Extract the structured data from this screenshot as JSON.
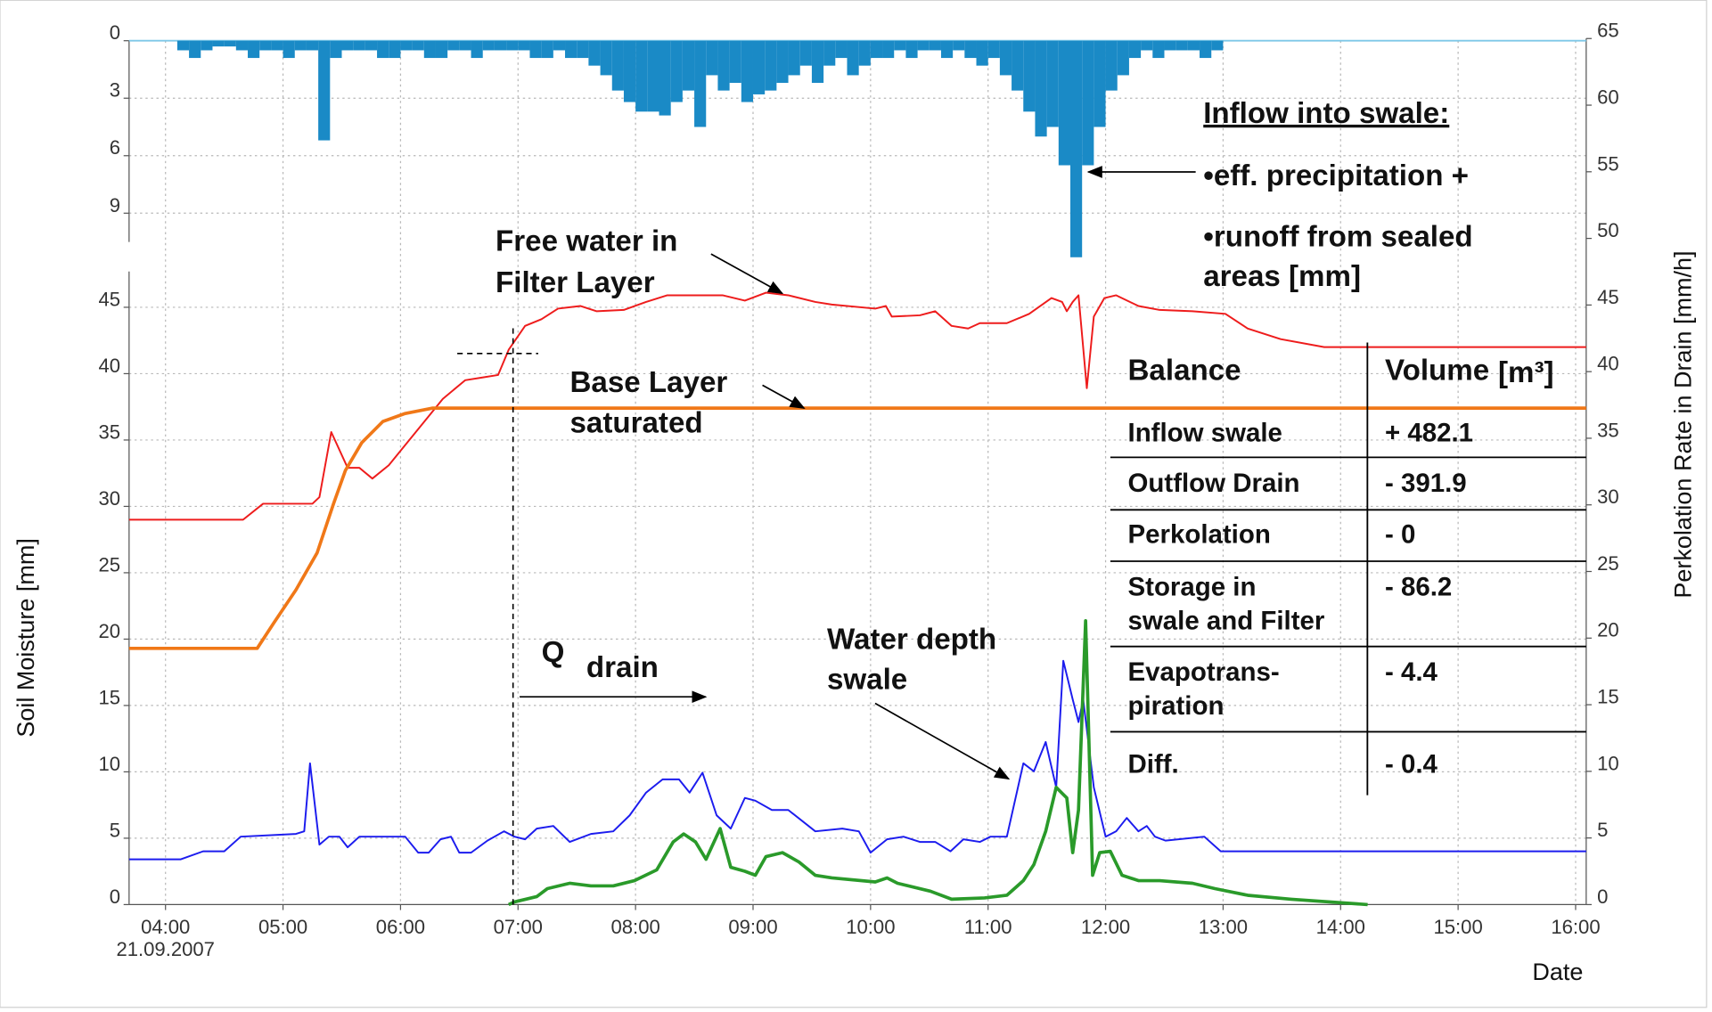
{
  "chart_data": [
    {
      "type": "bar",
      "color": "#1a8ac6",
      "inverted": true,
      "grid": true,
      "xlim": [
        3.69,
        16.09
      ],
      "ylim": [
        0,
        10.5
      ],
      "yticks": [
        0,
        3,
        6,
        9
      ],
      "x": [
        4.1,
        4.2,
        4.3,
        4.4,
        4.5,
        4.6,
        4.7,
        4.8,
        4.9,
        5.0,
        5.1,
        5.2,
        5.3,
        5.4,
        5.5,
        5.6,
        5.7,
        5.8,
        5.9,
        6.0,
        6.1,
        6.2,
        6.3,
        6.4,
        6.5,
        6.6,
        6.7,
        6.8,
        6.9,
        7.0,
        7.1,
        7.2,
        7.3,
        7.4,
        7.5,
        7.6,
        7.7,
        7.8,
        7.9,
        8.0,
        8.1,
        8.2,
        8.3,
        8.4,
        8.5,
        8.6,
        8.7,
        8.8,
        8.9,
        9.0,
        9.1,
        9.2,
        9.3,
        9.4,
        9.5,
        9.6,
        9.7,
        9.8,
        9.9,
        10.0,
        10.1,
        10.2,
        10.3,
        10.4,
        10.5,
        10.6,
        10.7,
        10.8,
        10.9,
        11.0,
        11.1,
        11.2,
        11.3,
        11.4,
        11.5,
        11.6,
        11.7,
        11.8,
        11.9,
        12.0,
        12.1,
        12.2,
        12.3,
        12.4,
        12.5,
        12.6,
        12.7,
        12.8,
        12.9
      ],
      "values": [
        0.5,
        0.9,
        0.5,
        0.3,
        0.3,
        0.5,
        0.9,
        0.5,
        0.5,
        0.9,
        0.5,
        0.5,
        5.2,
        0.9,
        0.5,
        0.5,
        0.5,
        0.9,
        0.9,
        0.5,
        0.5,
        0.9,
        0.9,
        0.5,
        0.5,
        0.9,
        0.5,
        0.5,
        0.5,
        0.5,
        0.9,
        0.9,
        0.5,
        0.9,
        0.9,
        1.3,
        1.8,
        2.6,
        3.2,
        3.7,
        3.7,
        3.9,
        3.2,
        2.6,
        4.5,
        1.8,
        2.6,
        2.2,
        3.2,
        2.8,
        2.6,
        2.2,
        1.8,
        1.3,
        2.2,
        1.3,
        0.9,
        1.8,
        1.3,
        0.9,
        0.9,
        0.5,
        0.9,
        0.5,
        0.5,
        0.9,
        0.5,
        0.9,
        1.3,
        0.9,
        1.8,
        2.6,
        3.7,
        5.0,
        4.5,
        6.5,
        11.3,
        6.5,
        4.5,
        2.6,
        1.8,
        0.9,
        0.5,
        0.9,
        0.5,
        0.5,
        0.5,
        0.9,
        0.5
      ]
    },
    {
      "type": "line",
      "grid": true,
      "xlim": [
        3.69,
        16.09
      ],
      "xticks": [
        {
          "value": 4,
          "label": "04:00"
        },
        {
          "value": 5,
          "label": "05:00"
        },
        {
          "value": 6,
          "label": "06:00"
        },
        {
          "value": 7,
          "label": "07:00"
        },
        {
          "value": 8,
          "label": "08:00"
        },
        {
          "value": 9,
          "label": "09:00"
        },
        {
          "value": 10,
          "label": "10:00"
        },
        {
          "value": 11,
          "label": "11:00"
        },
        {
          "value": 12,
          "label": "12:00"
        },
        {
          "value": 13,
          "label": "13:00"
        },
        {
          "value": 14,
          "label": "14:00"
        },
        {
          "value": 15,
          "label": "15:00"
        },
        {
          "value": 16,
          "label": "16:00"
        }
      ],
      "x_date": "21.09.2007",
      "xlabel": "Date",
      "ylabel": "Soil Moisture [mm]",
      "y2label": "Perkolation Rate in Drain [mm/h]",
      "ylim": [
        0,
        47.7
      ],
      "yticks": [
        0,
        5,
        10,
        15,
        20,
        25,
        30,
        35,
        40,
        45
      ],
      "y2lim": [
        0,
        65
      ],
      "y2ticks": [
        0,
        5,
        10,
        15,
        20,
        25,
        30,
        35,
        40,
        45,
        50,
        55,
        60,
        65
      ],
      "series": [
        {
          "color": "#ee1c1c",
          "x": [
            3.69,
            4.66,
            4.83,
            5.25,
            5.31,
            5.41,
            5.55,
            5.65,
            5.76,
            5.9,
            6.13,
            6.36,
            6.55,
            6.69,
            6.83,
            6.92,
            7.06,
            7.2,
            7.34,
            7.53,
            7.67,
            7.9,
            8.09,
            8.27,
            8.74,
            8.93,
            9.11,
            9.3,
            9.53,
            9.67,
            10.04,
            10.13,
            10.18,
            10.42,
            10.55,
            10.69,
            10.83,
            10.93,
            11.16,
            11.35,
            11.54,
            11.63,
            11.67,
            11.72,
            11.77,
            11.84,
            11.9,
            11.99,
            12.09,
            12.28,
            12.46,
            12.74,
            13.02,
            13.21,
            13.49,
            13.86,
            16.09
          ],
          "values": [
            29.0,
            29.0,
            30.2,
            30.2,
            30.7,
            35.6,
            32.9,
            32.9,
            32.1,
            33.1,
            35.6,
            38.1,
            39.5,
            39.7,
            39.9,
            41.8,
            43.6,
            44.1,
            44.9,
            45.1,
            44.7,
            44.8,
            45.4,
            45.9,
            45.9,
            45.5,
            46.1,
            45.9,
            45.4,
            45.2,
            44.9,
            45.1,
            44.3,
            44.4,
            44.7,
            43.6,
            43.4,
            43.8,
            43.8,
            44.5,
            45.7,
            45.4,
            44.7,
            45.4,
            45.9,
            38.9,
            44.3,
            45.7,
            45.9,
            45.1,
            44.8,
            44.7,
            44.5,
            43.4,
            42.6,
            42.0,
            42.0
          ]
        },
        {
          "color": "#f07818",
          "x": [
            3.69,
            4.78,
            4.92,
            5.11,
            5.29,
            5.43,
            5.53,
            5.67,
            5.85,
            6.04,
            6.27,
            16.09
          ],
          "values": [
            19.3,
            19.3,
            21.2,
            23.7,
            26.5,
            30.2,
            32.7,
            34.8,
            36.4,
            37.0,
            37.4,
            37.4
          ]
        },
        {
          "color": "#1c1cee",
          "axis": "y2",
          "x": [
            3.69,
            4.13,
            4.32,
            4.5,
            4.64,
            5.11,
            5.18,
            5.23,
            5.31,
            5.39,
            5.48,
            5.55,
            5.65,
            6.04,
            6.15,
            6.24,
            6.34,
            6.43,
            6.5,
            6.6,
            6.74,
            6.88,
            6.97,
            7.06,
            7.16,
            7.3,
            7.44,
            7.62,
            7.81,
            7.95,
            8.09,
            8.23,
            8.37,
            8.46,
            8.57,
            8.69,
            8.81,
            8.93,
            9.02,
            9.16,
            9.3,
            9.53,
            9.76,
            9.9,
            10.0,
            10.14,
            10.28,
            10.42,
            10.55,
            10.68,
            10.79,
            10.93,
            11.02,
            11.16,
            11.3,
            11.39,
            11.49,
            11.58,
            11.64,
            11.72,
            11.77,
            11.81,
            11.9,
            12.0,
            12.09,
            12.18,
            12.28,
            12.35,
            12.42,
            12.51,
            12.84,
            12.98,
            16.09
          ],
          "values": [
            3.4,
            3.4,
            4.0,
            4.0,
            5.1,
            5.3,
            5.5,
            10.6,
            4.5,
            5.1,
            5.1,
            4.3,
            5.1,
            5.1,
            3.9,
            3.9,
            4.9,
            5.1,
            3.9,
            3.9,
            4.8,
            5.5,
            5.1,
            4.9,
            5.7,
            5.9,
            4.7,
            5.3,
            5.5,
            6.7,
            8.4,
            9.4,
            9.4,
            8.4,
            9.9,
            6.7,
            5.7,
            8.0,
            7.8,
            7.1,
            7.1,
            5.5,
            5.7,
            5.5,
            3.9,
            4.9,
            5.1,
            4.7,
            4.7,
            4.0,
            4.9,
            4.7,
            5.1,
            5.1,
            10.6,
            10.0,
            12.2,
            8.8,
            18.3,
            15.4,
            13.7,
            15.4,
            8.8,
            5.1,
            5.5,
            6.5,
            5.5,
            5.9,
            5.1,
            4.8,
            5.1,
            4.0,
            4.0
          ]
        },
        {
          "color": "#2a9a2a",
          "axis": "y2",
          "x": [
            6.92,
            6.97,
            7.16,
            7.25,
            7.44,
            7.62,
            7.81,
            7.99,
            8.18,
            8.32,
            8.41,
            8.51,
            8.6,
            8.72,
            8.81,
            8.93,
            9.02,
            9.11,
            9.25,
            9.39,
            9.53,
            9.67,
            10.04,
            10.14,
            10.23,
            10.51,
            10.69,
            10.97,
            11.16,
            11.3,
            11.39,
            11.49,
            11.58,
            11.67,
            11.72,
            11.77,
            11.83,
            11.89,
            11.95,
            12.04,
            12.14,
            12.28,
            12.46,
            12.74,
            12.93,
            13.21,
            13.58,
            14.23
          ],
          "values": [
            0,
            0.2,
            0.6,
            1.2,
            1.6,
            1.4,
            1.4,
            1.8,
            2.6,
            4.7,
            5.3,
            4.7,
            3.4,
            5.7,
            2.8,
            2.5,
            2.2,
            3.6,
            3.9,
            3.2,
            2.2,
            2.0,
            1.7,
            2.0,
            1.6,
            1.0,
            0.4,
            0.5,
            0.7,
            1.8,
            3.0,
            5.5,
            8.8,
            8.0,
            3.9,
            7.1,
            21.3,
            2.2,
            3.9,
            4.0,
            2.2,
            1.8,
            1.8,
            1.6,
            1.2,
            0.7,
            0.4,
            0
          ]
        }
      ],
      "annotations": {
        "inflow_title": "Inflow into swale:",
        "inflow_lines": [
          "•eff. precipitation +",
          "•runoff from sealed",
          "areas [mm]"
        ],
        "free_water": [
          "Free water in",
          "Filter Layer"
        ],
        "base_layer": [
          "Base Layer",
          "saturated"
        ],
        "q": "Q",
        "q_sub": "drain",
        "water_depth": [
          "Water depth",
          "swale"
        ]
      },
      "table": {
        "header": [
          "Balance",
          "Volume"
        ],
        "unit": "[m³]",
        "rows": [
          [
            [
              "Inflow swale"
            ],
            "+ 482.1"
          ],
          [
            [
              "Outflow Drain"
            ],
            "- 391.9"
          ],
          [
            [
              "Perkolation"
            ],
            "- 0"
          ],
          [
            [
              "Storage in",
              "swale and Filter"
            ],
            "- 86.2"
          ],
          [
            [
              "Evapotrans-",
              "piration"
            ],
            "- 4.4"
          ],
          [
            [
              "Diff."
            ],
            "- 0.4"
          ]
        ]
      }
    }
  ]
}
